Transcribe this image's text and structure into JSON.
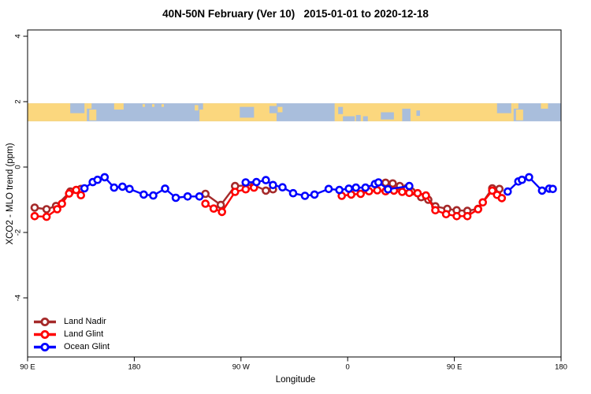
{
  "title": "40N-50N February (Ver 10)   2015-01-01 to 2020-12-18",
  "axes": {
    "x": {
      "label": "Longitude",
      "ticks": [
        {
          "value": 90,
          "label": "90 E"
        },
        {
          "value": 180,
          "label": "180"
        },
        {
          "value": 270,
          "label": "90 W"
        },
        {
          "value": 360,
          "label": "0"
        },
        {
          "value": 450,
          "label": "90 E"
        },
        {
          "value": 540,
          "label": "180"
        }
      ]
    },
    "y": {
      "label": "XCO2 - MLO trend (ppm)",
      "ticks": [
        {
          "value": -4,
          "label": "-4"
        },
        {
          "value": -2,
          "label": "-2"
        },
        {
          "value": 0,
          "label": "0"
        },
        {
          "value": 2,
          "label": "2"
        },
        {
          "value": 4,
          "label": "4"
        }
      ]
    }
  },
  "legend": {
    "items": [
      {
        "label": "Land Nadir",
        "color": "#A52A2A"
      },
      {
        "label": "Land Glint",
        "color": "#FF0000"
      },
      {
        "label": "Ocean Glint",
        "color": "#0000FF"
      }
    ]
  },
  "chart_data": {
    "type": "line",
    "title": "40N-50N February (Ver 10)   2015-01-01 to 2020-12-18",
    "xlabel": "Longitude",
    "ylabel": "XCO2 - MLO trend (ppm)",
    "x_axis_note": "longitude unwrapped: 90E=90, 180=180, 90W=270, 0=360, 90E=450, 180=540",
    "xlim": [
      90,
      540
    ],
    "ylim": [
      -5.8,
      4.2
    ],
    "grid": false,
    "legend_position": "bottom-left",
    "series": [
      {
        "name": "Land Nadir",
        "color": "#A52A2A",
        "segments": [
          [
            [
              96,
              -1.24
            ],
            [
              106,
              -1.29
            ],
            [
              114,
              -1.19
            ],
            [
              126,
              -0.75
            ],
            [
              135,
              -0.67
            ]
          ],
          [
            [
              240,
              -0.82
            ],
            [
              253,
              -1.16
            ],
            [
              265,
              -0.58
            ],
            [
              281,
              -0.55
            ],
            [
              291,
              -0.72
            ],
            [
              297,
              -0.68
            ]
          ],
          [
            [
              392,
              -0.48
            ],
            [
              398,
              -0.5
            ],
            [
              404,
              -0.58
            ],
            [
              410,
              -0.64
            ],
            [
              414,
              -0.75
            ],
            [
              422,
              -0.92
            ],
            [
              428,
              -1.0
            ],
            [
              434,
              -1.2
            ],
            [
              444,
              -1.28
            ],
            [
              452,
              -1.32
            ],
            [
              461,
              -1.34
            ],
            [
              470,
              -1.28
            ],
            [
              482,
              -0.65
            ],
            [
              486,
              -0.8
            ],
            [
              488,
              -0.67
            ]
          ]
        ]
      },
      {
        "name": "Land Glint",
        "color": "#FF0000",
        "segments": [
          [
            [
              96,
              -1.5
            ],
            [
              106,
              -1.52
            ],
            [
              115,
              -1.29
            ],
            [
              119,
              -1.12
            ],
            [
              125,
              -0.81
            ],
            [
              131,
              -0.7
            ],
            [
              135,
              -0.86
            ]
          ],
          [
            [
              240,
              -1.12
            ],
            [
              247,
              -1.27
            ],
            [
              254,
              -1.37
            ],
            [
              265,
              -0.76
            ],
            [
              274,
              -0.68
            ],
            [
              281,
              -0.63
            ]
          ],
          [
            [
              355,
              -0.88
            ],
            [
              363,
              -0.84
            ],
            [
              371,
              -0.82
            ],
            [
              378,
              -0.74
            ],
            [
              385,
              -0.71
            ],
            [
              392,
              -0.74
            ],
            [
              399,
              -0.72
            ],
            [
              406,
              -0.76
            ],
            [
              412,
              -0.79
            ],
            [
              419,
              -0.8
            ],
            [
              426,
              -0.87
            ],
            [
              434,
              -1.32
            ],
            [
              443,
              -1.44
            ],
            [
              452,
              -1.5
            ],
            [
              461,
              -1.5
            ],
            [
              470,
              -1.29
            ],
            [
              474,
              -1.08
            ],
            [
              482,
              -0.72
            ],
            [
              486,
              -0.85
            ],
            [
              490,
              -0.95
            ]
          ]
        ]
      },
      {
        "name": "Ocean Glint",
        "color": "#0000FF",
        "segments": [
          [
            [
              138,
              -0.65
            ],
            [
              145,
              -0.46
            ],
            [
              149,
              -0.39
            ],
            [
              155,
              -0.31
            ],
            [
              163,
              -0.63
            ],
            [
              170,
              -0.6
            ],
            [
              176,
              -0.67
            ],
            [
              188,
              -0.84
            ],
            [
              196,
              -0.87
            ],
            [
              206,
              -0.66
            ],
            [
              215,
              -0.94
            ],
            [
              225,
              -0.9
            ],
            [
              235,
              -0.9
            ]
          ],
          [
            [
              274,
              -0.47
            ],
            [
              283,
              -0.46
            ],
            [
              291,
              -0.4
            ],
            [
              297,
              -0.55
            ],
            [
              305,
              -0.62
            ],
            [
              314,
              -0.8
            ],
            [
              324,
              -0.88
            ],
            [
              332,
              -0.84
            ],
            [
              344,
              -0.67
            ],
            [
              353,
              -0.7
            ],
            [
              361,
              -0.66
            ],
            [
              367,
              -0.63
            ],
            [
              375,
              -0.63
            ],
            [
              383,
              -0.52
            ],
            [
              386,
              -0.47
            ],
            [
              394,
              -0.68
            ],
            [
              412,
              -0.58
            ]
          ],
          [
            [
              495,
              -0.75
            ],
            [
              504,
              -0.44
            ],
            [
              507,
              -0.39
            ],
            [
              513,
              -0.31
            ],
            [
              524,
              -0.72
            ],
            [
              530,
              -0.66
            ],
            [
              533,
              -0.67
            ]
          ]
        ]
      }
    ],
    "map_band": {
      "description": "40N-50N world coastline strip drawn across the top of the plot",
      "y_top": 1.95,
      "y_bottom": 1.4,
      "ocean_color": "#A9BEDC",
      "land_color": "#FBD77E",
      "land_blocks": [
        [
          90,
          140
        ],
        [
          235,
          300
        ],
        [
          349,
          500
        ]
      ],
      "ocean_patches": [
        [
          126,
          138,
          0,
          0.55
        ],
        [
          235,
          238,
          0,
          0.35
        ],
        [
          269,
          281,
          0.2,
          0.8
        ],
        [
          294,
          300,
          0.15,
          0.55
        ],
        [
          352,
          356,
          0.2,
          0.6
        ],
        [
          356,
          366,
          0.72,
          1
        ],
        [
          367,
          371,
          0.65,
          1
        ],
        [
          373,
          377,
          0.72,
          1
        ],
        [
          388,
          399,
          0.5,
          0.9
        ],
        [
          406,
          413,
          0.3,
          1
        ],
        [
          418,
          421,
          0.4,
          0.7
        ],
        [
          486,
          498,
          0,
          0.55
        ]
      ],
      "island_patches": [
        [
          142,
          148,
          0.35,
          0.95
        ],
        [
          140,
          144,
          0,
          0.3
        ],
        [
          163,
          171,
          0,
          0.35
        ],
        [
          187,
          189,
          0.05,
          0.2
        ],
        [
          195,
          197,
          0.05,
          0.2
        ],
        [
          203,
          205,
          0.05,
          0.2
        ],
        [
          231,
          234,
          0.1,
          0.4
        ],
        [
          301,
          305,
          0.2,
          0.5
        ],
        [
          502,
          508,
          0.35,
          0.95
        ],
        [
          500,
          504,
          0,
          0.3
        ],
        [
          523,
          529,
          0,
          0.3
        ]
      ]
    }
  }
}
